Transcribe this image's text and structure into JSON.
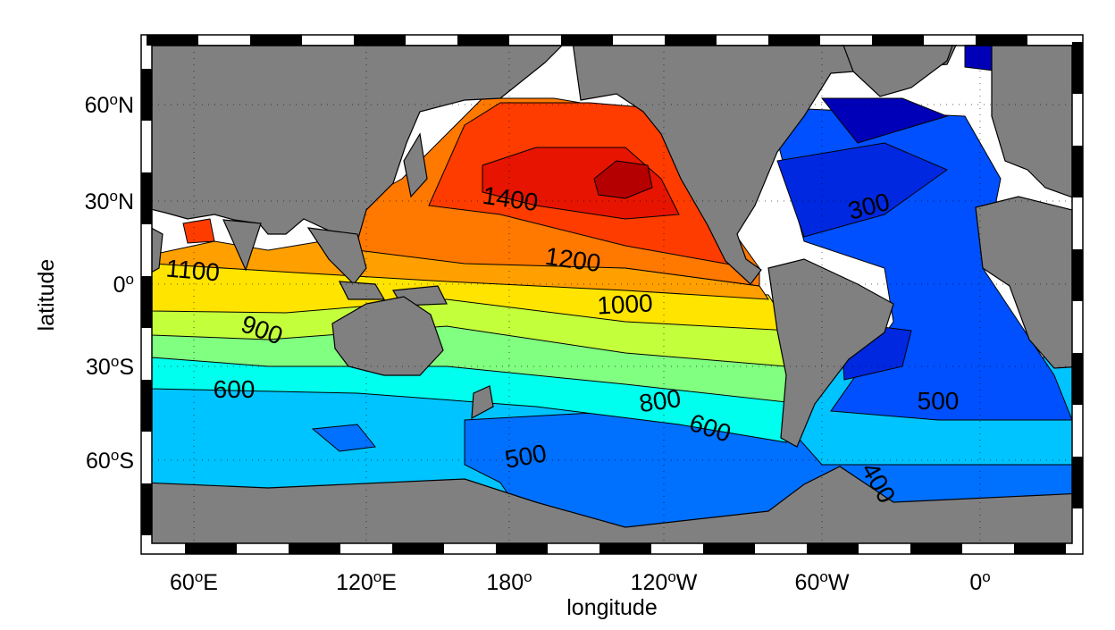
{
  "map": {
    "x_label": "longitude",
    "y_label": "latitude",
    "x_ticks": [
      {
        "number": "60",
        "sup": "o",
        "suffix": "E"
      },
      {
        "number": "120",
        "sup": "o",
        "suffix": "E"
      },
      {
        "number": "180",
        "sup": "o"
      },
      {
        "number": "120",
        "sup": "o",
        "suffix": "W"
      },
      {
        "number": "60",
        "sup": "o",
        "suffix": "W"
      },
      {
        "number": "0",
        "sup": "o"
      }
    ],
    "y_ticks": [
      {
        "number": "60",
        "sup": "o",
        "suffix": "N"
      },
      {
        "number": "30",
        "sup": "o",
        "suffix": "N"
      },
      {
        "number": "0",
        "sup": "o"
      },
      {
        "number": "30",
        "sup": "o",
        "suffix": "S"
      },
      {
        "number": "60",
        "sup": "o",
        "suffix": "S"
      }
    ],
    "contour_labels": [
      "1400",
      "1200",
      "1000",
      "1100",
      "900",
      "600",
      "800",
      "600",
      "500",
      "500",
      "300",
      "400"
    ]
  }
}
